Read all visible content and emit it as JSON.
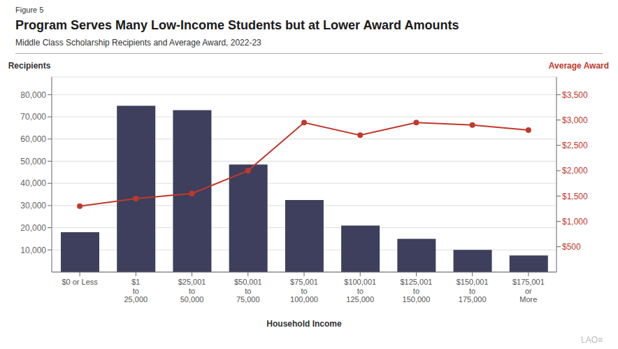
{
  "chart_data": {
    "type": "bar",
    "title": "Program Serves Many Low-Income Students but at Lower Award Amounts",
    "subtitle": "Middle Class Scholarship Recipients and Average Award, 2022-23",
    "annotations": [
      "Figure 5",
      "LAO≡"
    ],
    "x_label": "Household Income",
    "y_label": "Recipients",
    "y2_label": "Average Award",
    "categories": [
      "$0 or Less",
      "$1\nto\n25,000",
      "$25,001\nto\n50,000",
      "$50,001\nto\n75,000",
      "$75,001\nto\n100,000",
      "$100,001\nto\n125,000",
      "$125,001\nto\n150,000",
      "$150,001\nto\n175,000",
      "$175,001\nor\nMore"
    ],
    "series": [
      {
        "name": "Recipients",
        "type": "bar",
        "color": "#3d3f5c",
        "values": [
          18000,
          75000,
          73000,
          48500,
          32500,
          21000,
          15000,
          10000,
          7500
        ]
      },
      {
        "name": "Average Award",
        "type": "line",
        "axis": "y2",
        "color": "#c0392b",
        "marker": "circle",
        "values": [
          1300,
          1450,
          1550,
          2000,
          2950,
          2700,
          2950,
          2900,
          2800
        ]
      }
    ],
    "ylim": [
      0,
      88000
    ],
    "yticks": [
      {
        "value": 10000,
        "label": "10,000"
      },
      {
        "value": 20000,
        "label": "20,000"
      },
      {
        "value": 30000,
        "label": "30,000"
      },
      {
        "value": 40000,
        "label": "40,000"
      },
      {
        "value": 50000,
        "label": "50,000"
      },
      {
        "value": 60000,
        "label": "60,000"
      },
      {
        "value": 70000,
        "label": "70,000"
      },
      {
        "value": 80000,
        "label": "80,000"
      }
    ],
    "y2lim": [
      0,
      3850
    ],
    "y2ticks": [
      {
        "value": 500,
        "label": "$500"
      },
      {
        "value": 1000,
        "label": "$1,000"
      },
      {
        "value": 1500,
        "label": "$1,500"
      },
      {
        "value": 2000,
        "label": "$2,000"
      },
      {
        "value": 2500,
        "label": "$2,500"
      },
      {
        "value": 3000,
        "label": "$3,000"
      },
      {
        "value": 3500,
        "label": "$3,500"
      }
    ],
    "grid": true
  }
}
